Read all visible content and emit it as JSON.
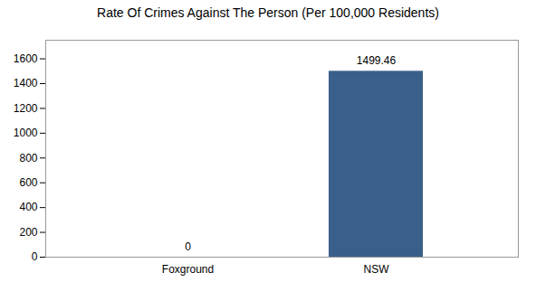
{
  "chart_data": {
    "type": "bar",
    "title": "Rate Of Crimes Against The Person (Per 100,000 Residents)",
    "categories": [
      "Foxground",
      "NSW"
    ],
    "values": [
      0,
      1499.46
    ],
    "color": "#3a5f8a",
    "ylim": [
      0,
      1750
    ],
    "yticks": [
      0,
      200,
      400,
      600,
      800,
      1000,
      1200,
      1400,
      1600
    ],
    "data_labels": true,
    "grid": false
  }
}
